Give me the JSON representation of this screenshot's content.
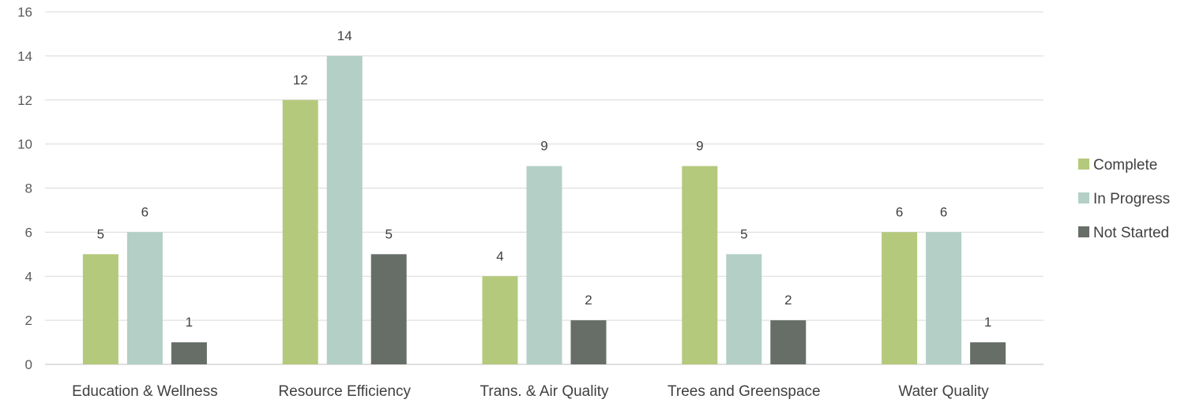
{
  "chart_data": {
    "type": "bar",
    "categories": [
      "Education & Wellness",
      "Resource Efficiency",
      "Trans. & Air Quality",
      "Trees and Greenspace",
      "Water Quality"
    ],
    "series": [
      {
        "name": "Complete",
        "values": [
          5,
          12,
          4,
          9,
          6
        ],
        "color": "#b5c97c"
      },
      {
        "name": "In Progress",
        "values": [
          6,
          14,
          9,
          5,
          6
        ],
        "color": "#b3cfc6"
      },
      {
        "name": "Not Started",
        "values": [
          1,
          5,
          2,
          2,
          1
        ],
        "color": "#676e68"
      }
    ],
    "ylim": [
      0,
      16
    ],
    "yticks": [
      0,
      2,
      4,
      6,
      8,
      10,
      12,
      14,
      16
    ],
    "grid": true,
    "legend": "right",
    "data_labels": true
  }
}
